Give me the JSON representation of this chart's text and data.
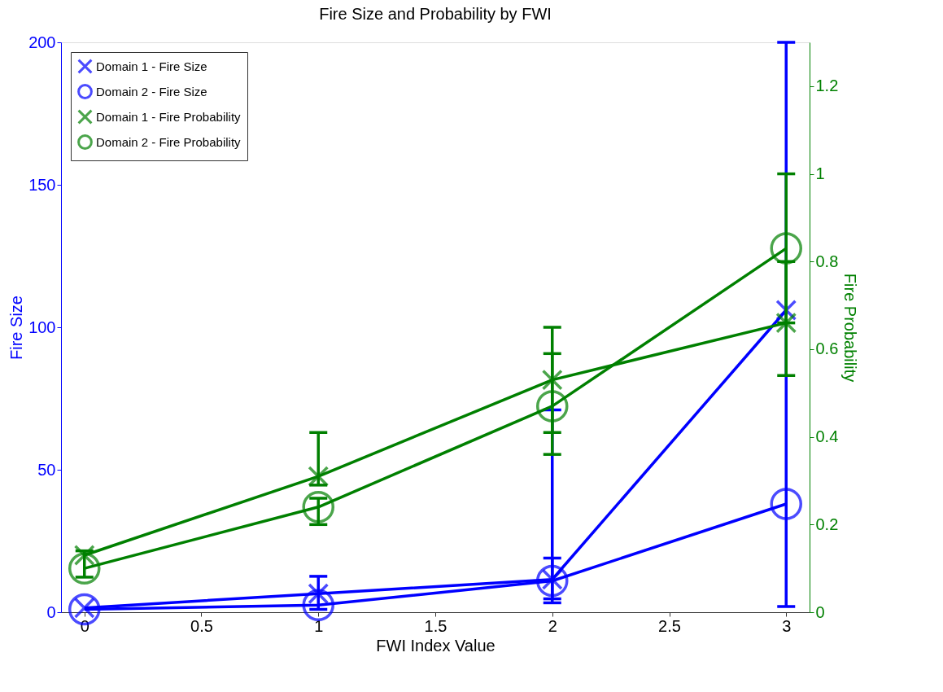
{
  "chart_data": {
    "type": "line",
    "title": "Fire Size and Probability by FWI",
    "xlabel": "FWI Index Value",
    "ylabel": "Fire Size",
    "y2label": "Fire Probability",
    "x": [
      0,
      1,
      2,
      3
    ],
    "xlim": [
      -0.1,
      3.1
    ],
    "xticks": [
      0,
      0.5,
      1,
      1.5,
      2,
      2.5,
      3
    ],
    "ylim": [
      0,
      200
    ],
    "yticks": [
      0,
      50,
      100,
      150,
      200
    ],
    "y2lim": [
      0,
      1.3
    ],
    "y2ticks": [
      0,
      0.2,
      0.4,
      0.6,
      0.8,
      1,
      1.2
    ],
    "grid": false,
    "legend": "top left",
    "line_style": "solid",
    "series": [
      {
        "name": "Domain 1 - Fire Size",
        "color": "#0000ff",
        "marker": "cross",
        "values": [
          1.5,
          6.5,
          11.5,
          106
        ],
        "errors": [
          null,
          [
            1,
            12.6
          ],
          [
            4.7,
            19
          ],
          null
        ]
      },
      {
        "name": "Domain 2 - Fire Size",
        "color": "#0000ff",
        "marker": "circle",
        "values": [
          1,
          2.5,
          11,
          38
        ],
        "errors": [
          null,
          null,
          [
            3.3,
            71
          ],
          [
            2,
            200
          ]
        ]
      },
      {
        "name": "Domain 1 - Fire Probability",
        "color": "#008000",
        "marker": "cross",
        "axis": "y2",
        "values": [
          0.13,
          0.31,
          0.53,
          0.66
        ],
        "errors": [
          null,
          [
            0.29,
            0.41
          ],
          [
            0.41,
            0.65
          ],
          [
            0.54,
            0.8
          ]
        ]
      },
      {
        "name": "Domain 2 - Fire Probability",
        "color": "#008000",
        "marker": "circle",
        "axis": "y2",
        "values": [
          0.1,
          0.24,
          0.47,
          0.83
        ],
        "errors": [
          [
            0.08,
            0.14
          ],
          [
            0.2,
            0.26
          ],
          [
            0.36,
            0.59
          ],
          [
            0.66,
            1.0
          ]
        ]
      }
    ]
  }
}
